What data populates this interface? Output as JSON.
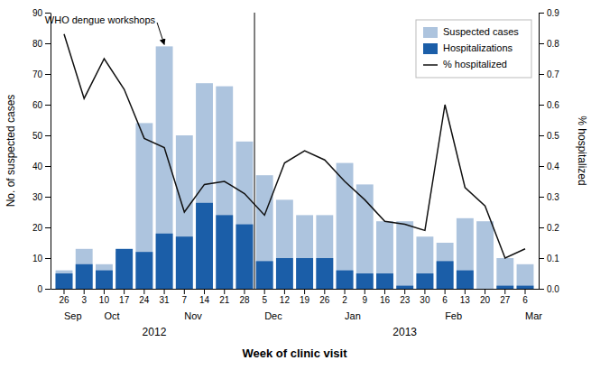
{
  "chart_data": {
    "type": "bar",
    "categories": [
      "26",
      "3",
      "10",
      "17",
      "24",
      "31",
      "7",
      "14",
      "21",
      "28",
      "5",
      "12",
      "19",
      "26",
      "2",
      "9",
      "16",
      "23",
      "30",
      "6",
      "13",
      "20",
      "27",
      "6"
    ],
    "series": [
      {
        "name": "Suspected cases",
        "type": "bar",
        "color": "#adc4de",
        "values": [
          6,
          13,
          8,
          12,
          54,
          79,
          50,
          67,
          66,
          48,
          37,
          29,
          24,
          24,
          41,
          34,
          22,
          22,
          17,
          15,
          23,
          22,
          10,
          8
        ]
      },
      {
        "name": "Hospitalizations",
        "type": "bar",
        "color": "#1b5ea8",
        "values": [
          5,
          8,
          6,
          13,
          12,
          18,
          17,
          28,
          24,
          21,
          9,
          10,
          10,
          10,
          6,
          5,
          5,
          1,
          5,
          9,
          6,
          0,
          1,
          1
        ]
      },
      {
        "name": "% hospitalized",
        "type": "line",
        "axis": "y2",
        "color": "#111111",
        "values": [
          0.83,
          0.62,
          0.75,
          0.65,
          0.49,
          0.46,
          0.25,
          0.34,
          0.35,
          0.31,
          0.24,
          0.41,
          0.45,
          0.42,
          0.35,
          0.29,
          0.22,
          0.21,
          0.19,
          0.6,
          0.33,
          0.27,
          0.1,
          0.13
        ]
      }
    ],
    "stacked": false,
    "ylim": [
      0,
      90
    ],
    "yticks": [
      0,
      10,
      20,
      30,
      40,
      50,
      60,
      70,
      80,
      90
    ],
    "y2lim": [
      0.0,
      0.9
    ],
    "y2ticks": [
      {
        "value": 0,
        "label": "0.0"
      },
      0.1,
      0.2,
      0.3,
      0.4,
      0.5,
      0.6,
      0.7,
      0.8,
      0.9
    ],
    "ylabel": "No. of suspected cases",
    "y2label": "% hospitalized",
    "xlabel": "Week of clinic visit",
    "month_labels": [
      {
        "text": "Sep",
        "x": 0
      },
      {
        "text": "Oct",
        "x": 2
      },
      {
        "text": "Nov",
        "x": 6
      },
      {
        "text": "Dec",
        "x": 10
      },
      {
        "text": "Jan",
        "x": 14
      },
      {
        "text": "Feb",
        "x": 19
      },
      {
        "text": "Mar",
        "x": 23
      }
    ],
    "year_labels": [
      {
        "text": "2012",
        "x": 4.5
      },
      {
        "text": "2013",
        "x": 17.0
      }
    ],
    "separator_x": 9.5,
    "annotations": [
      {
        "text": "WHO dengue workshops",
        "x": 5,
        "y": 79
      }
    ],
    "legend": "upper right",
    "grid": false
  }
}
